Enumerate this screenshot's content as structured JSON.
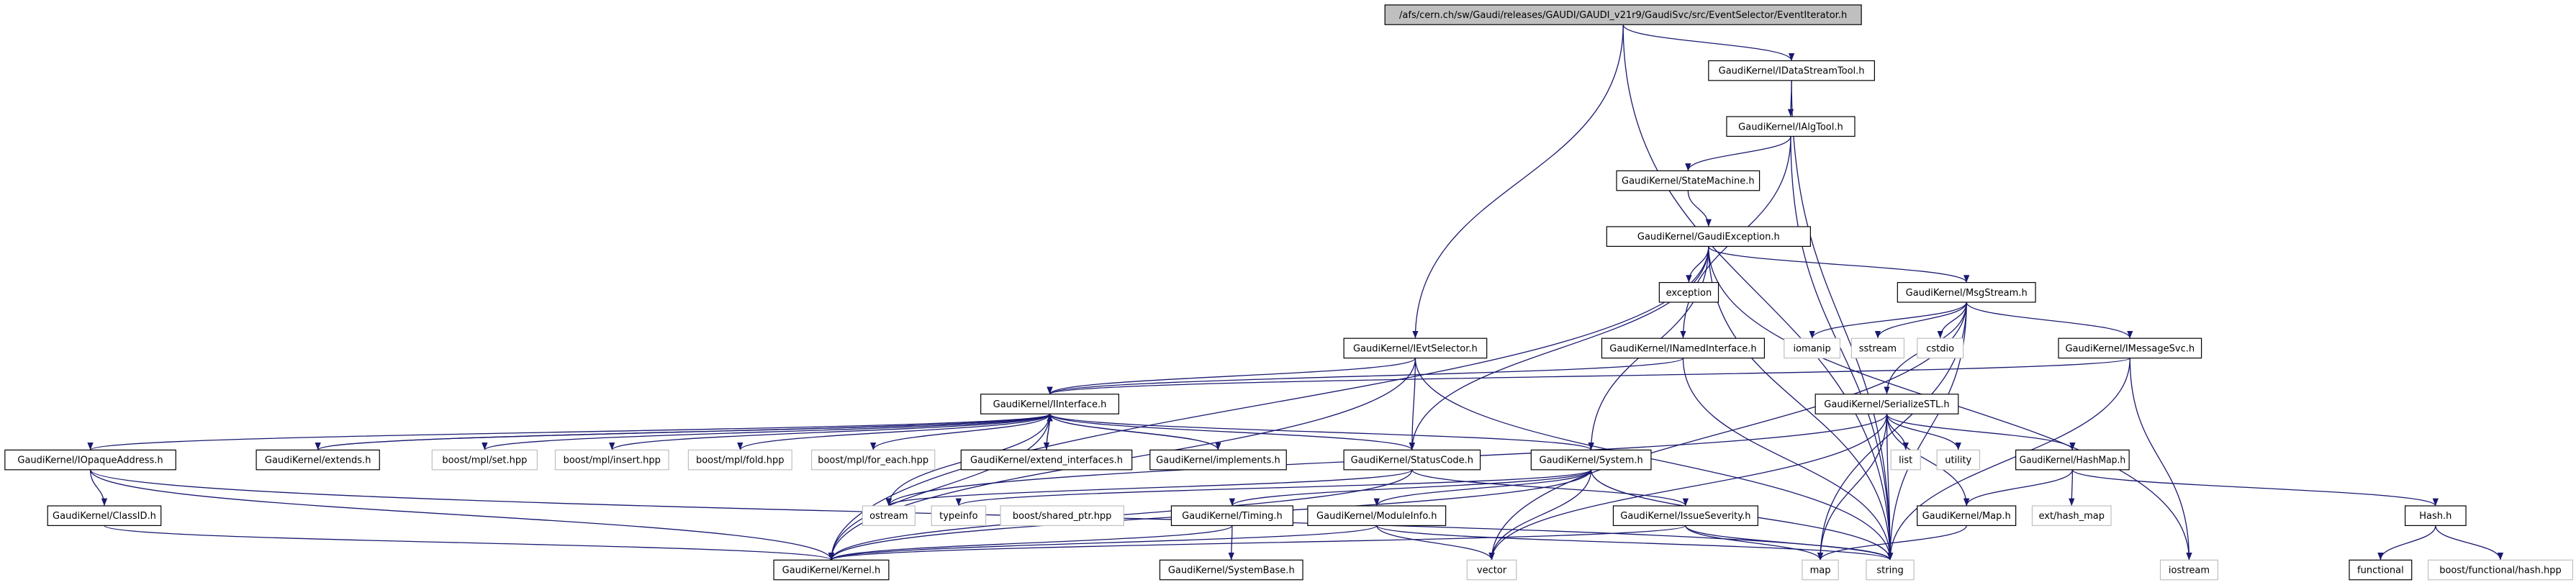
{
  "nodes": [
    {
      "label": "/afs/cern.ch/sw/Gaudi/releases/GAUDI/GAUDI_v21r9/GaudiSvc/src/EventSelector/EventIterator.h"
    },
    {
      "label": "GaudiKernel/IDataStreamTool.h"
    },
    {
      "label": "GaudiKernel/IAlgTool.h"
    },
    {
      "label": "GaudiKernel/StateMachine.h"
    },
    {
      "label": "GaudiKernel/GaudiException.h"
    },
    {
      "label": "exception"
    },
    {
      "label": "GaudiKernel/MsgStream.h"
    },
    {
      "label": "iomanip"
    },
    {
      "label": "sstream"
    },
    {
      "label": "cstdio"
    },
    {
      "label": "GaudiKernel/IMessageSvc.h"
    },
    {
      "label": "GaudiKernel/IEvtSelector.h"
    },
    {
      "label": "GaudiKernel/INamedInterface.h"
    },
    {
      "label": "GaudiKernel/IInterface.h"
    },
    {
      "label": "GaudiKernel/SerializeSTL.h"
    },
    {
      "label": "GaudiKernel/IOpaqueAddress.h"
    },
    {
      "label": "GaudiKernel/extends.h"
    },
    {
      "label": "boost/mpl/set.hpp"
    },
    {
      "label": "boost/mpl/insert.hpp"
    },
    {
      "label": "boost/mpl/fold.hpp"
    },
    {
      "label": "boost/mpl/for_each.hpp"
    },
    {
      "label": "GaudiKernel/extend_interfaces.h"
    },
    {
      "label": "GaudiKernel/implements.h"
    },
    {
      "label": "GaudiKernel/StatusCode.h"
    },
    {
      "label": "GaudiKernel/System.h"
    },
    {
      "label": "list"
    },
    {
      "label": "utility"
    },
    {
      "label": "GaudiKernel/HashMap.h"
    },
    {
      "label": "GaudiKernel/ClassID.h"
    },
    {
      "label": "ostream"
    },
    {
      "label": "typeinfo"
    },
    {
      "label": "boost/shared_ptr.hpp"
    },
    {
      "label": "GaudiKernel/Timing.h"
    },
    {
      "label": "GaudiKernel/ModuleInfo.h"
    },
    {
      "label": "GaudiKernel/IssueSeverity.h"
    },
    {
      "label": "GaudiKernel/Map.h"
    },
    {
      "label": "ext/hash_map"
    },
    {
      "label": "Hash.h"
    },
    {
      "label": "GaudiKernel/Kernel.h"
    },
    {
      "label": "GaudiKernel/SystemBase.h"
    },
    {
      "label": "vector"
    },
    {
      "label": "map"
    },
    {
      "label": "string"
    },
    {
      "label": "iostream"
    },
    {
      "label": "functional"
    },
    {
      "label": "boost/functional/hash.hpp"
    }
  ]
}
